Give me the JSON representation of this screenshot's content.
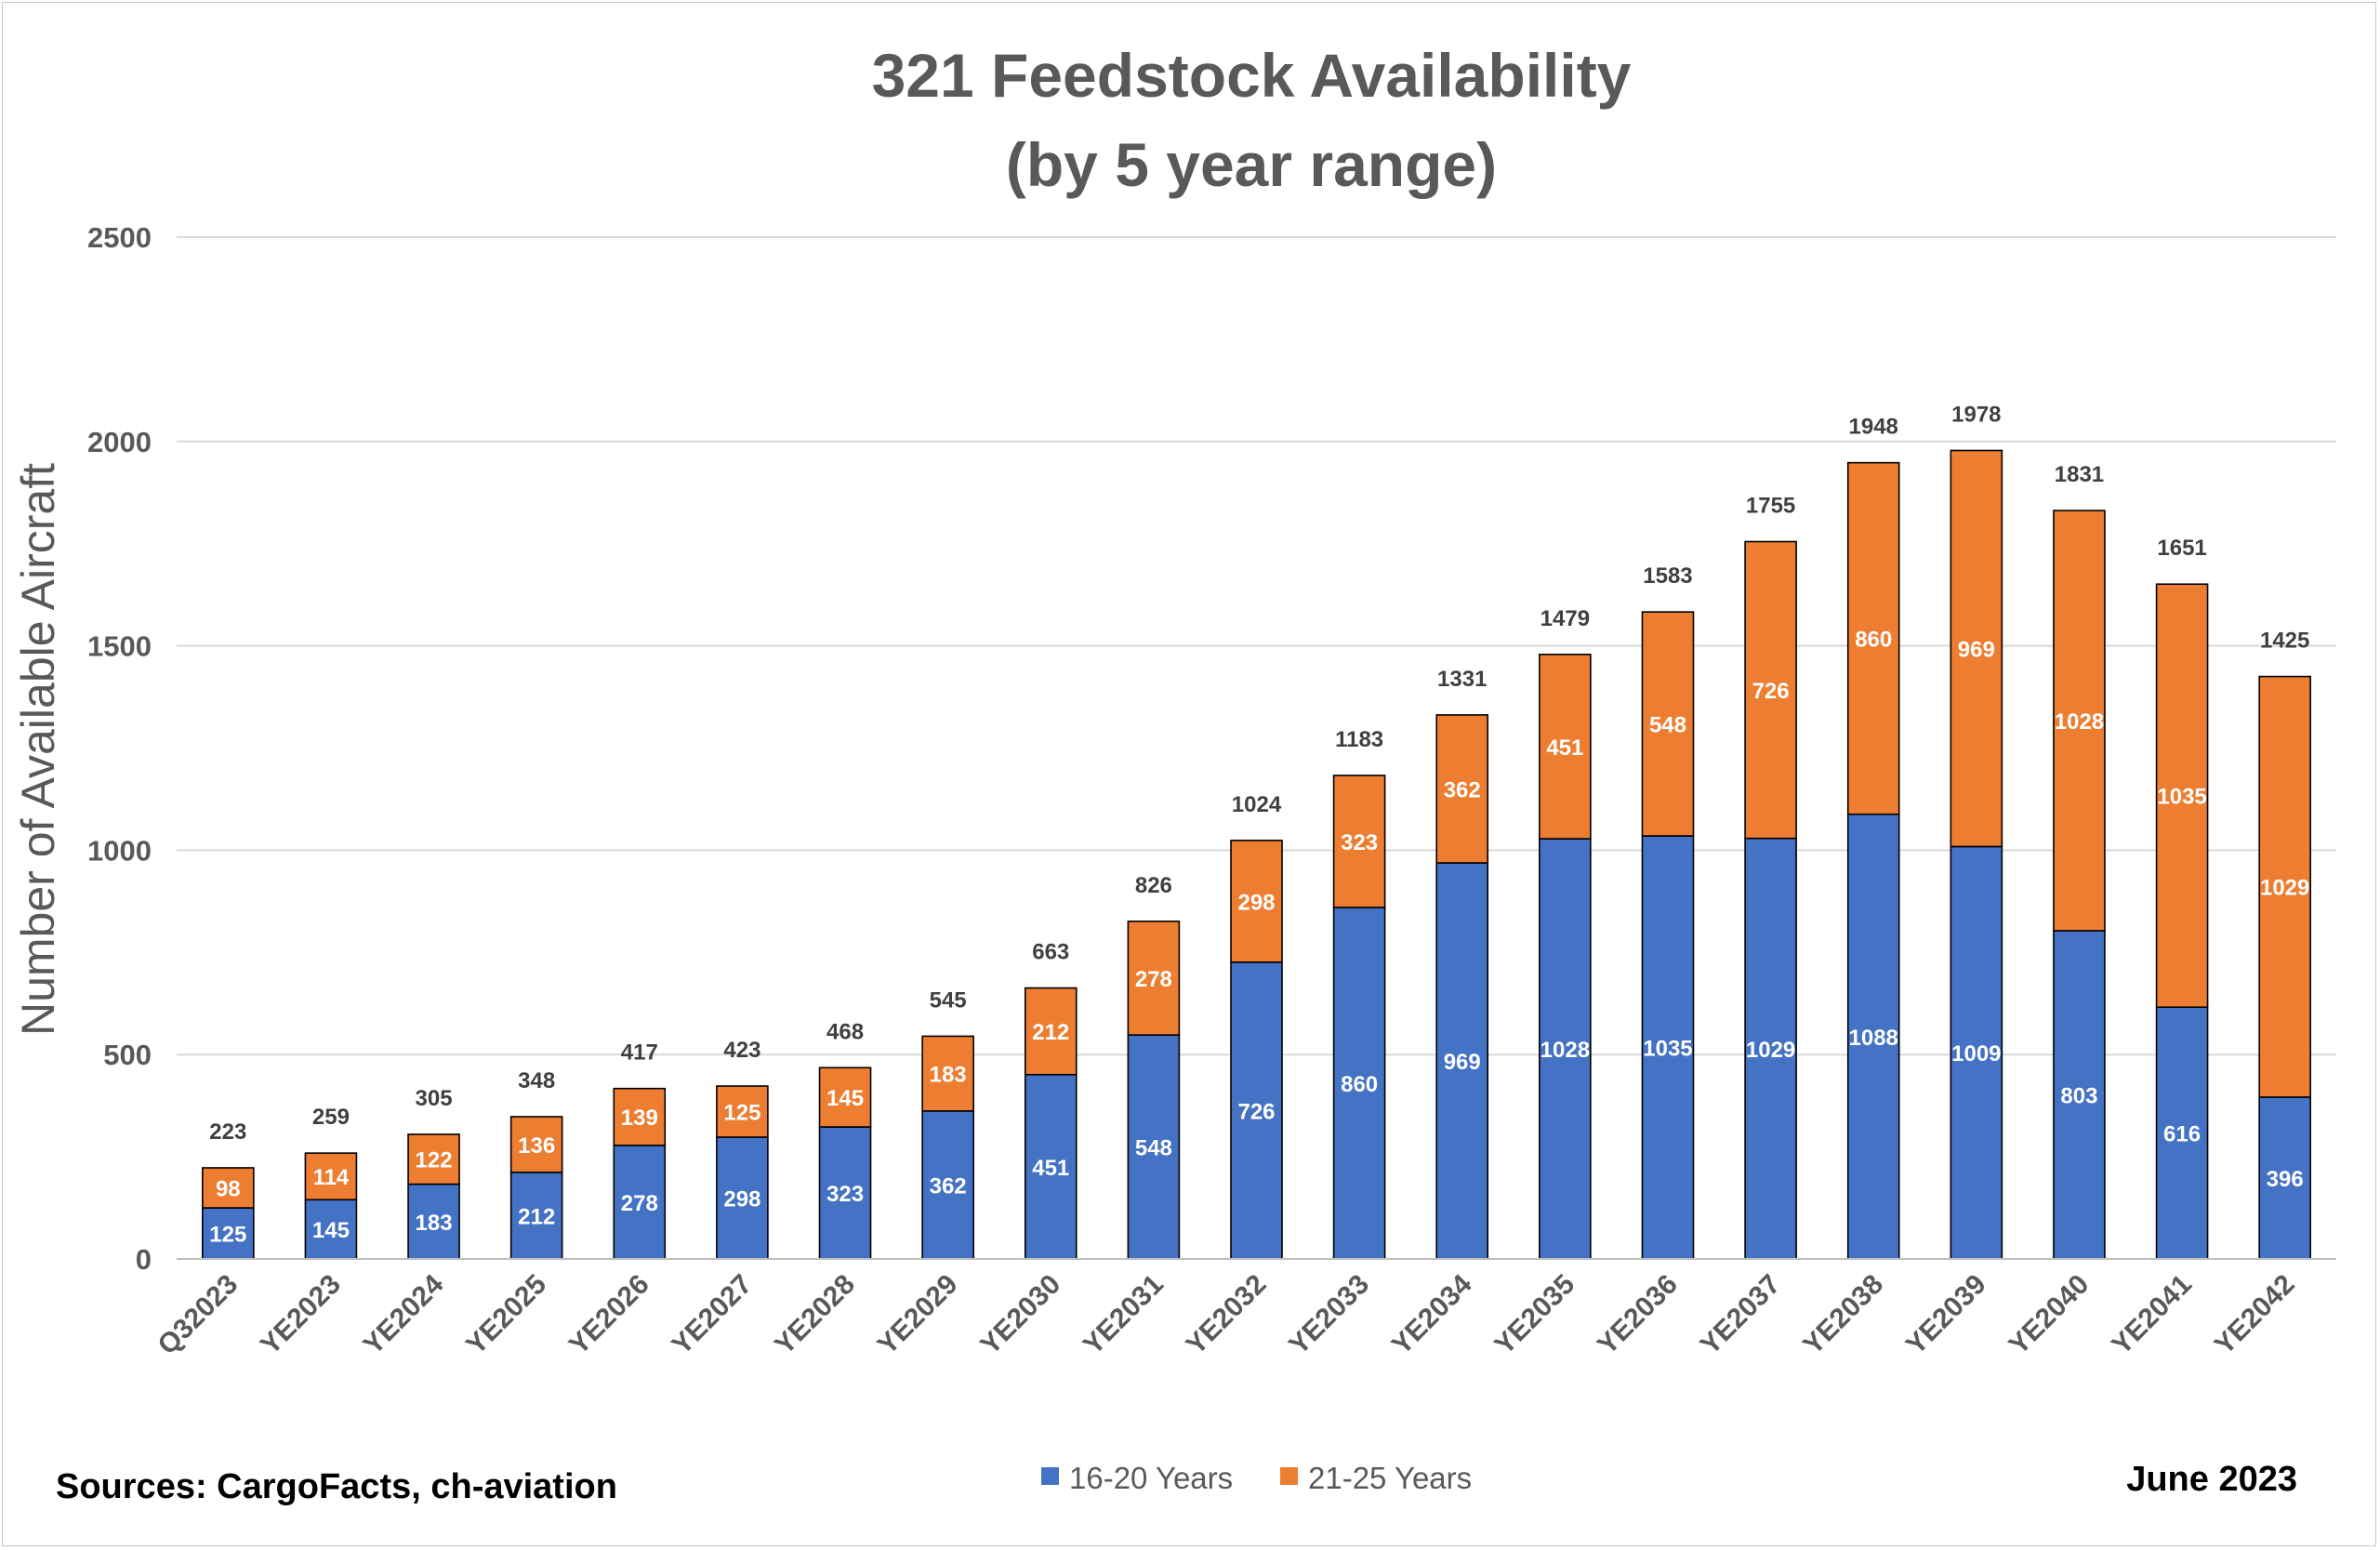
{
  "chart_data": {
    "type": "bar",
    "stacked": true,
    "title": [
      "321 Feedstock Availability",
      "(by 5 year range)"
    ],
    "ylabel": "Number of Available Aircraft",
    "xlabel": "",
    "ylim": [
      0,
      2500
    ],
    "yticks": [
      0,
      500,
      1000,
      1500,
      2000,
      2500
    ],
    "ytick_labels": [
      "0",
      "500",
      "1000",
      "1500",
      "2000",
      "2500"
    ],
    "grid": true,
    "legend_position": "bottom",
    "categories": [
      "Q32023",
      "YE2023",
      "YE2024",
      "YE2025",
      "YE2026",
      "YE2027",
      "YE2028",
      "YE2029",
      "YE2030",
      "YE2031",
      "YE2032",
      "YE2033",
      "YE2034",
      "YE2035",
      "YE2036",
      "YE2037",
      "YE2038",
      "YE2039",
      "YE2040",
      "YE2041",
      "YE2042"
    ],
    "series": [
      {
        "name": "16-20 Years",
        "color": "#4472C4",
        "values": [
          125,
          145,
          183,
          212,
          278,
          298,
          323,
          362,
          451,
          548,
          726,
          860,
          969,
          1028,
          1035,
          1029,
          1088,
          1009,
          803,
          616,
          396
        ],
        "labels": [
          "125",
          "145",
          "183",
          "212",
          "278",
          "298",
          "323",
          "362",
          "451",
          "548",
          "726",
          "860",
          "969",
          "1028",
          "1035",
          "1029",
          "1088",
          "1009",
          "803",
          "616",
          "396"
        ]
      },
      {
        "name": "21-25 Years",
        "color": "#ED7D31",
        "values": [
          98,
          114,
          122,
          136,
          139,
          125,
          145,
          183,
          212,
          278,
          298,
          323,
          362,
          451,
          548,
          726,
          860,
          969,
          1028,
          1035,
          1029
        ],
        "labels": [
          "98",
          "114",
          "122",
          "136",
          "139",
          "125",
          "145",
          "183",
          "212",
          "278",
          "298",
          "323",
          "362",
          "451",
          "548",
          "726",
          "860",
          "969",
          "1028",
          "1035",
          "1029"
        ]
      }
    ],
    "totals": [
      223,
      259,
      305,
      348,
      417,
      423,
      468,
      545,
      663,
      826,
      1024,
      1183,
      1331,
      1479,
      1583,
      1755,
      1948,
      1978,
      1831,
      1651,
      1425
    ],
    "total_labels": [
      "223",
      "259",
      "305",
      "348",
      "417",
      "423",
      "468",
      "545",
      "663",
      "826",
      "1024",
      "1183",
      "1331",
      "1479",
      "1583",
      "1755",
      "1948",
      "1978",
      "1831",
      "1651",
      "1425"
    ]
  },
  "footer": {
    "sources": "Sources: CargoFacts, ch-aviation",
    "date": "June 2023"
  },
  "colors": {
    "gridline": "#d9d9d9",
    "axis": "#bfbfbf",
    "bar_outline": "#000000"
  }
}
